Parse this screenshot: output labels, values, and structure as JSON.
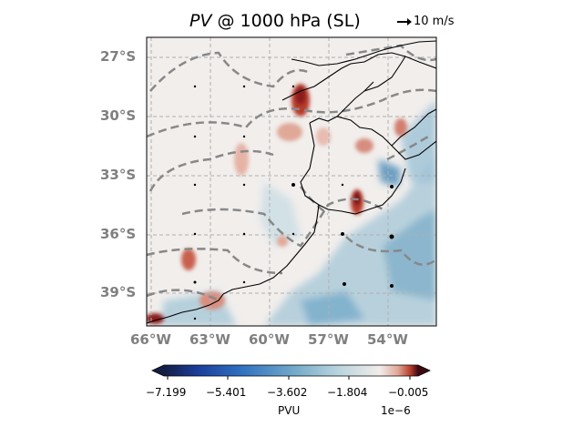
{
  "title": {
    "variable": "PV",
    "rest": " @ 1000 hPa (SL)"
  },
  "quiver_key": {
    "label": "10 m/s"
  },
  "map": {
    "lat_labels": [
      "27°S",
      "30°S",
      "33°S",
      "36°S",
      "39°S"
    ],
    "lon_labels": [
      "66°W",
      "63°W",
      "60°W",
      "57°W",
      "54°W"
    ],
    "field": "potential vorticity",
    "colormap": "balance (blue-white-red)",
    "gridlines": true,
    "contours": "dashed grey"
  },
  "colorbar": {
    "ticks": [
      "−7.199",
      "−5.401",
      "−3.602",
      "−1.804",
      "−0.005"
    ],
    "units": "PVU",
    "exponent": "1e−6",
    "colors": [
      "#141d43",
      "#1b3d9a",
      "#2f6fc0",
      "#6ea6c8",
      "#b7d3dd",
      "#f1ecea",
      "#e0a897",
      "#b83b2c",
      "#3c0912"
    ]
  }
}
